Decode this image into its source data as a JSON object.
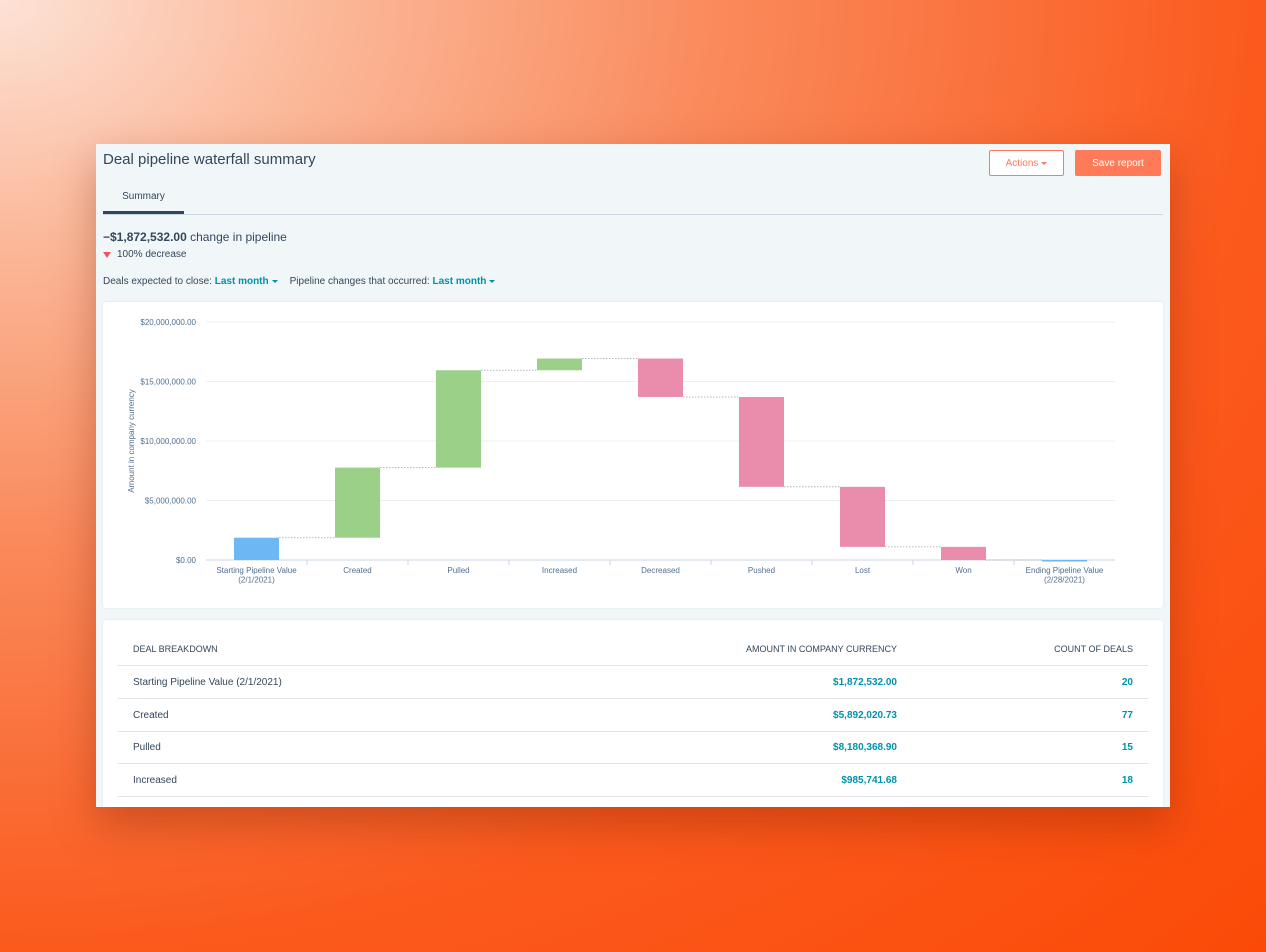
{
  "report": {
    "title": "Deal pipeline waterfall summary",
    "actions_label": "Actions",
    "save_label": "Save report",
    "tab_summary": "Summary",
    "change_value": "−$1,872,532.00",
    "change_suffix": " change in pipeline",
    "decrease_text": "100% decrease"
  },
  "filters": {
    "close_label": "Deals expected to close:",
    "close_value": "Last month",
    "changes_label": "Pipeline changes that occurred:",
    "changes_value": "Last month"
  },
  "chart_data": {
    "type": "bar",
    "subtype": "waterfall",
    "ylabel": "Amount in company currency",
    "xlabel": "",
    "ylim": [
      0,
      20000000
    ],
    "yticks": [
      "$0.00",
      "$5,000,000.00",
      "$10,000,000.00",
      "$15,000,000.00",
      "$20,000,000.00"
    ],
    "categories": [
      "Starting Pipeline Value (2/1/2021)",
      "Created",
      "Pulled",
      "Increased",
      "Decreased",
      "Pushed",
      "Lost",
      "Won",
      "Ending Pipeline Value (2/28/2021)"
    ],
    "category_labels": [
      [
        "Starting Pipeline Value",
        "(2/1/2021)"
      ],
      [
        "Created"
      ],
      [
        "Pulled"
      ],
      [
        "Increased"
      ],
      [
        "Decreased"
      ],
      [
        "Pushed"
      ],
      [
        "Lost"
      ],
      [
        "Won"
      ],
      [
        "Ending Pipeline Value",
        "(2/28/2021)"
      ]
    ],
    "bars": [
      {
        "start": 0,
        "end": 1872532
      },
      {
        "start": 1872532,
        "end": 7764553
      },
      {
        "start": 7764553,
        "end": 15944922
      },
      {
        "start": 15944922,
        "end": 16930663
      },
      {
        "start": 16930663,
        "end": 13700000
      },
      {
        "start": 13700000,
        "end": 6150000
      },
      {
        "start": 6150000,
        "end": 1100000
      },
      {
        "start": 1100000,
        "end": 0
      },
      {
        "start": 0,
        "end": 0
      }
    ],
    "colors": {
      "total": "#6db8f4",
      "increase": "#9bd089",
      "decrease": "#ea8cac"
    },
    "bar_kinds": [
      "total",
      "increase",
      "increase",
      "increase",
      "decrease",
      "decrease",
      "decrease",
      "decrease",
      "total"
    ],
    "grid": true,
    "legend": "none"
  },
  "breakdown": {
    "headers": {
      "label": "DEAL BREAKDOWN",
      "amount": "AMOUNT IN COMPANY CURRENCY",
      "count": "COUNT OF DEALS"
    },
    "rows": [
      {
        "label": "Starting Pipeline Value (2/1/2021)",
        "amount": "$1,872,532.00",
        "count": "20"
      },
      {
        "label": "Created",
        "amount": "$5,892,020.73",
        "count": "77"
      },
      {
        "label": "Pulled",
        "amount": "$8,180,368.90",
        "count": "15"
      },
      {
        "label": "Increased",
        "amount": "$985,741.68",
        "count": "18"
      }
    ]
  }
}
